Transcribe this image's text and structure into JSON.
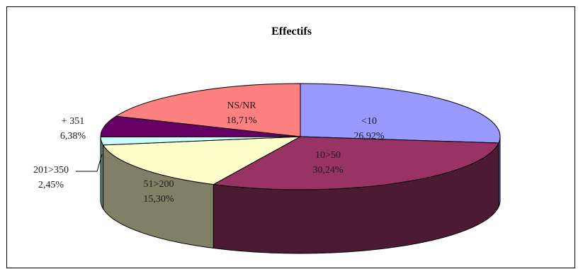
{
  "chart_data": {
    "type": "pie",
    "title": "Effectifs",
    "legend": "none",
    "slices": [
      {
        "label": "<10",
        "value": 26.92,
        "display": "26,92%",
        "color": "#9999ff",
        "side": "#6b6bb3"
      },
      {
        "label": "10>50",
        "value": 30.24,
        "display": "30,24%",
        "color": "#993366",
        "side": "#4d1a33"
      },
      {
        "label": "51>200",
        "value": 15.3,
        "display": "15,30%",
        "color": "#ffffcc",
        "side": "#808066"
      },
      {
        "label": "201>350",
        "value": 2.45,
        "display": "2,45%",
        "color": "#ccffff",
        "side": "#668080"
      },
      {
        "label": "+ 351",
        "value": 6.38,
        "display": "6,38%",
        "color": "#660066",
        "side": "#330033"
      },
      {
        "label": "NS/NR",
        "value": 18.71,
        "display": "18,71%",
        "color": "#ff8080",
        "side": "#804040"
      }
    ]
  }
}
